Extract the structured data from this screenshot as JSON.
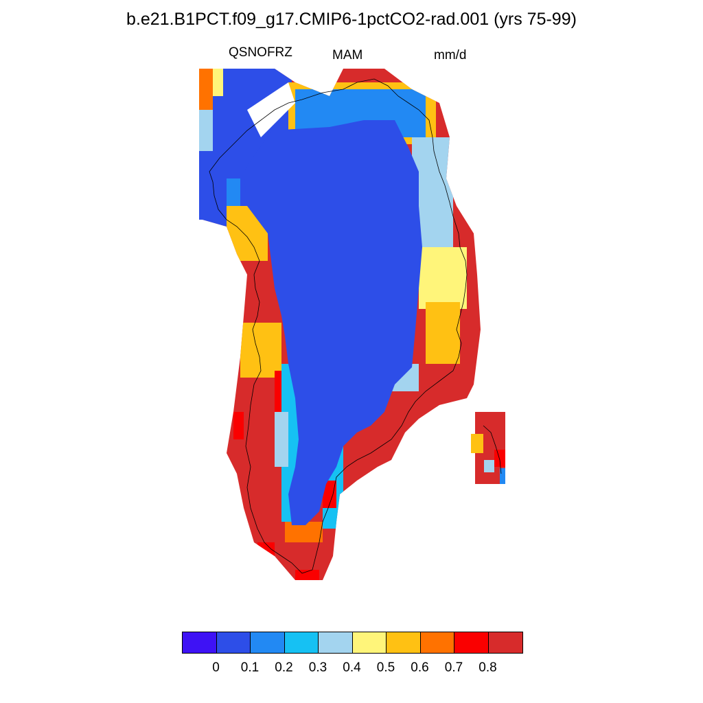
{
  "title": "b.e21.B1PCT.f09_g17.CMIP6-1pctCO2-rad.001 (yrs 75-99)",
  "variable": "QSNOFRZ",
  "season": "MAM",
  "units": "mm/d",
  "colorbar": {
    "colors": [
      "#3e12f5",
      "#2d4ee8",
      "#2289f3",
      "#16c1f3",
      "#a3d4ef",
      "#fff57a",
      "#ffc113",
      "#ff7200",
      "#fa0000",
      "#d72b2b"
    ],
    "labels": [
      "0",
      "0.1",
      "0.2",
      "0.3",
      "0.4",
      "0.5",
      "0.6",
      "0.7",
      "0.8"
    ]
  }
}
